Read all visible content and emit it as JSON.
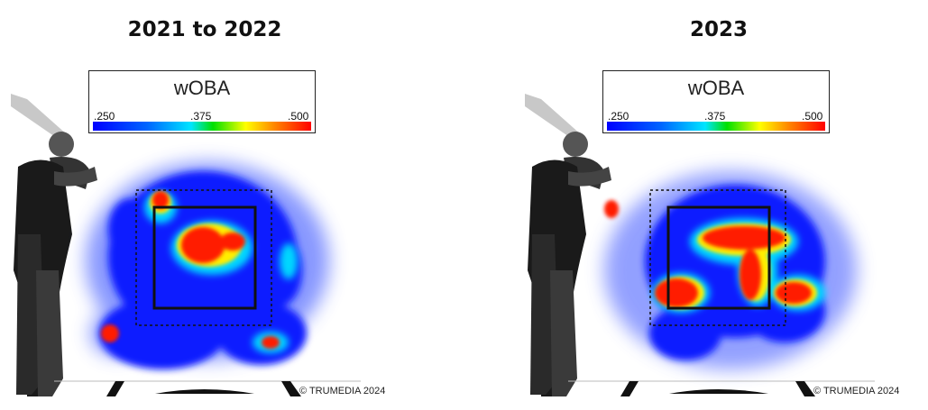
{
  "chart_data": [
    {
      "type": "heatmap",
      "title": "2021 to 2022",
      "metric": "wOBA",
      "scale_ticks": [
        ".250",
        ".375",
        ".500"
      ],
      "scale_range": [
        0.25,
        0.5
      ],
      "colors": [
        "#0000ff",
        "#00e5ff",
        "#00e000",
        "#ffff00",
        "#ff0000"
      ],
      "hot_zones": [
        "middle of strike zone",
        "top-left corner",
        "low inside (lower left)",
        "low outside (lower right)"
      ],
      "watermark": "© TRUMEDIA 2024"
    },
    {
      "type": "heatmap",
      "title": "2023",
      "metric": "wOBA",
      "scale_ticks": [
        ".250",
        ".375",
        ".500"
      ],
      "scale_range": [
        0.25,
        0.5
      ],
      "colors": [
        "#0000ff",
        "#00e5ff",
        "#00e000",
        "#ffff00",
        "#ff0000"
      ],
      "hot_zones": [
        "upper-middle band",
        "middle-right diagonal",
        "low inside",
        "low outside"
      ],
      "watermark": "© TRUMEDIA 2024"
    }
  ]
}
